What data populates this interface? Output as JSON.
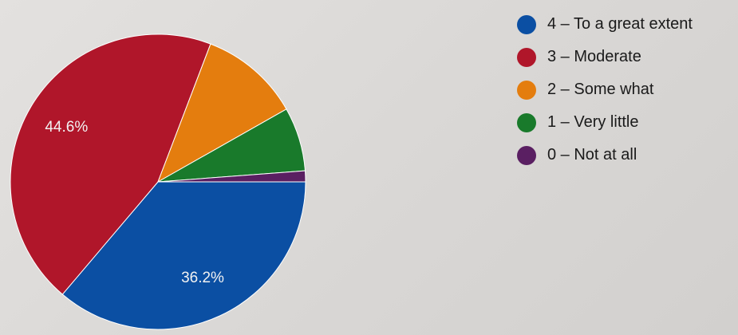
{
  "chart_data": {
    "type": "pie",
    "categories": [
      "4 – To a great extent",
      "3 – Moderate",
      "2 – Some what",
      "1 – Very little",
      "0 – Not at all"
    ],
    "values": [
      36.2,
      44.6,
      11.0,
      7.0,
      1.2
    ],
    "value_labels": [
      "36.2%",
      "44.6%",
      "",
      "",
      ""
    ],
    "colors": [
      "#0b4fa3",
      "#b0162a",
      "#e47d0e",
      "#197a2b",
      "#5a1f62"
    ],
    "legend": "right"
  }
}
